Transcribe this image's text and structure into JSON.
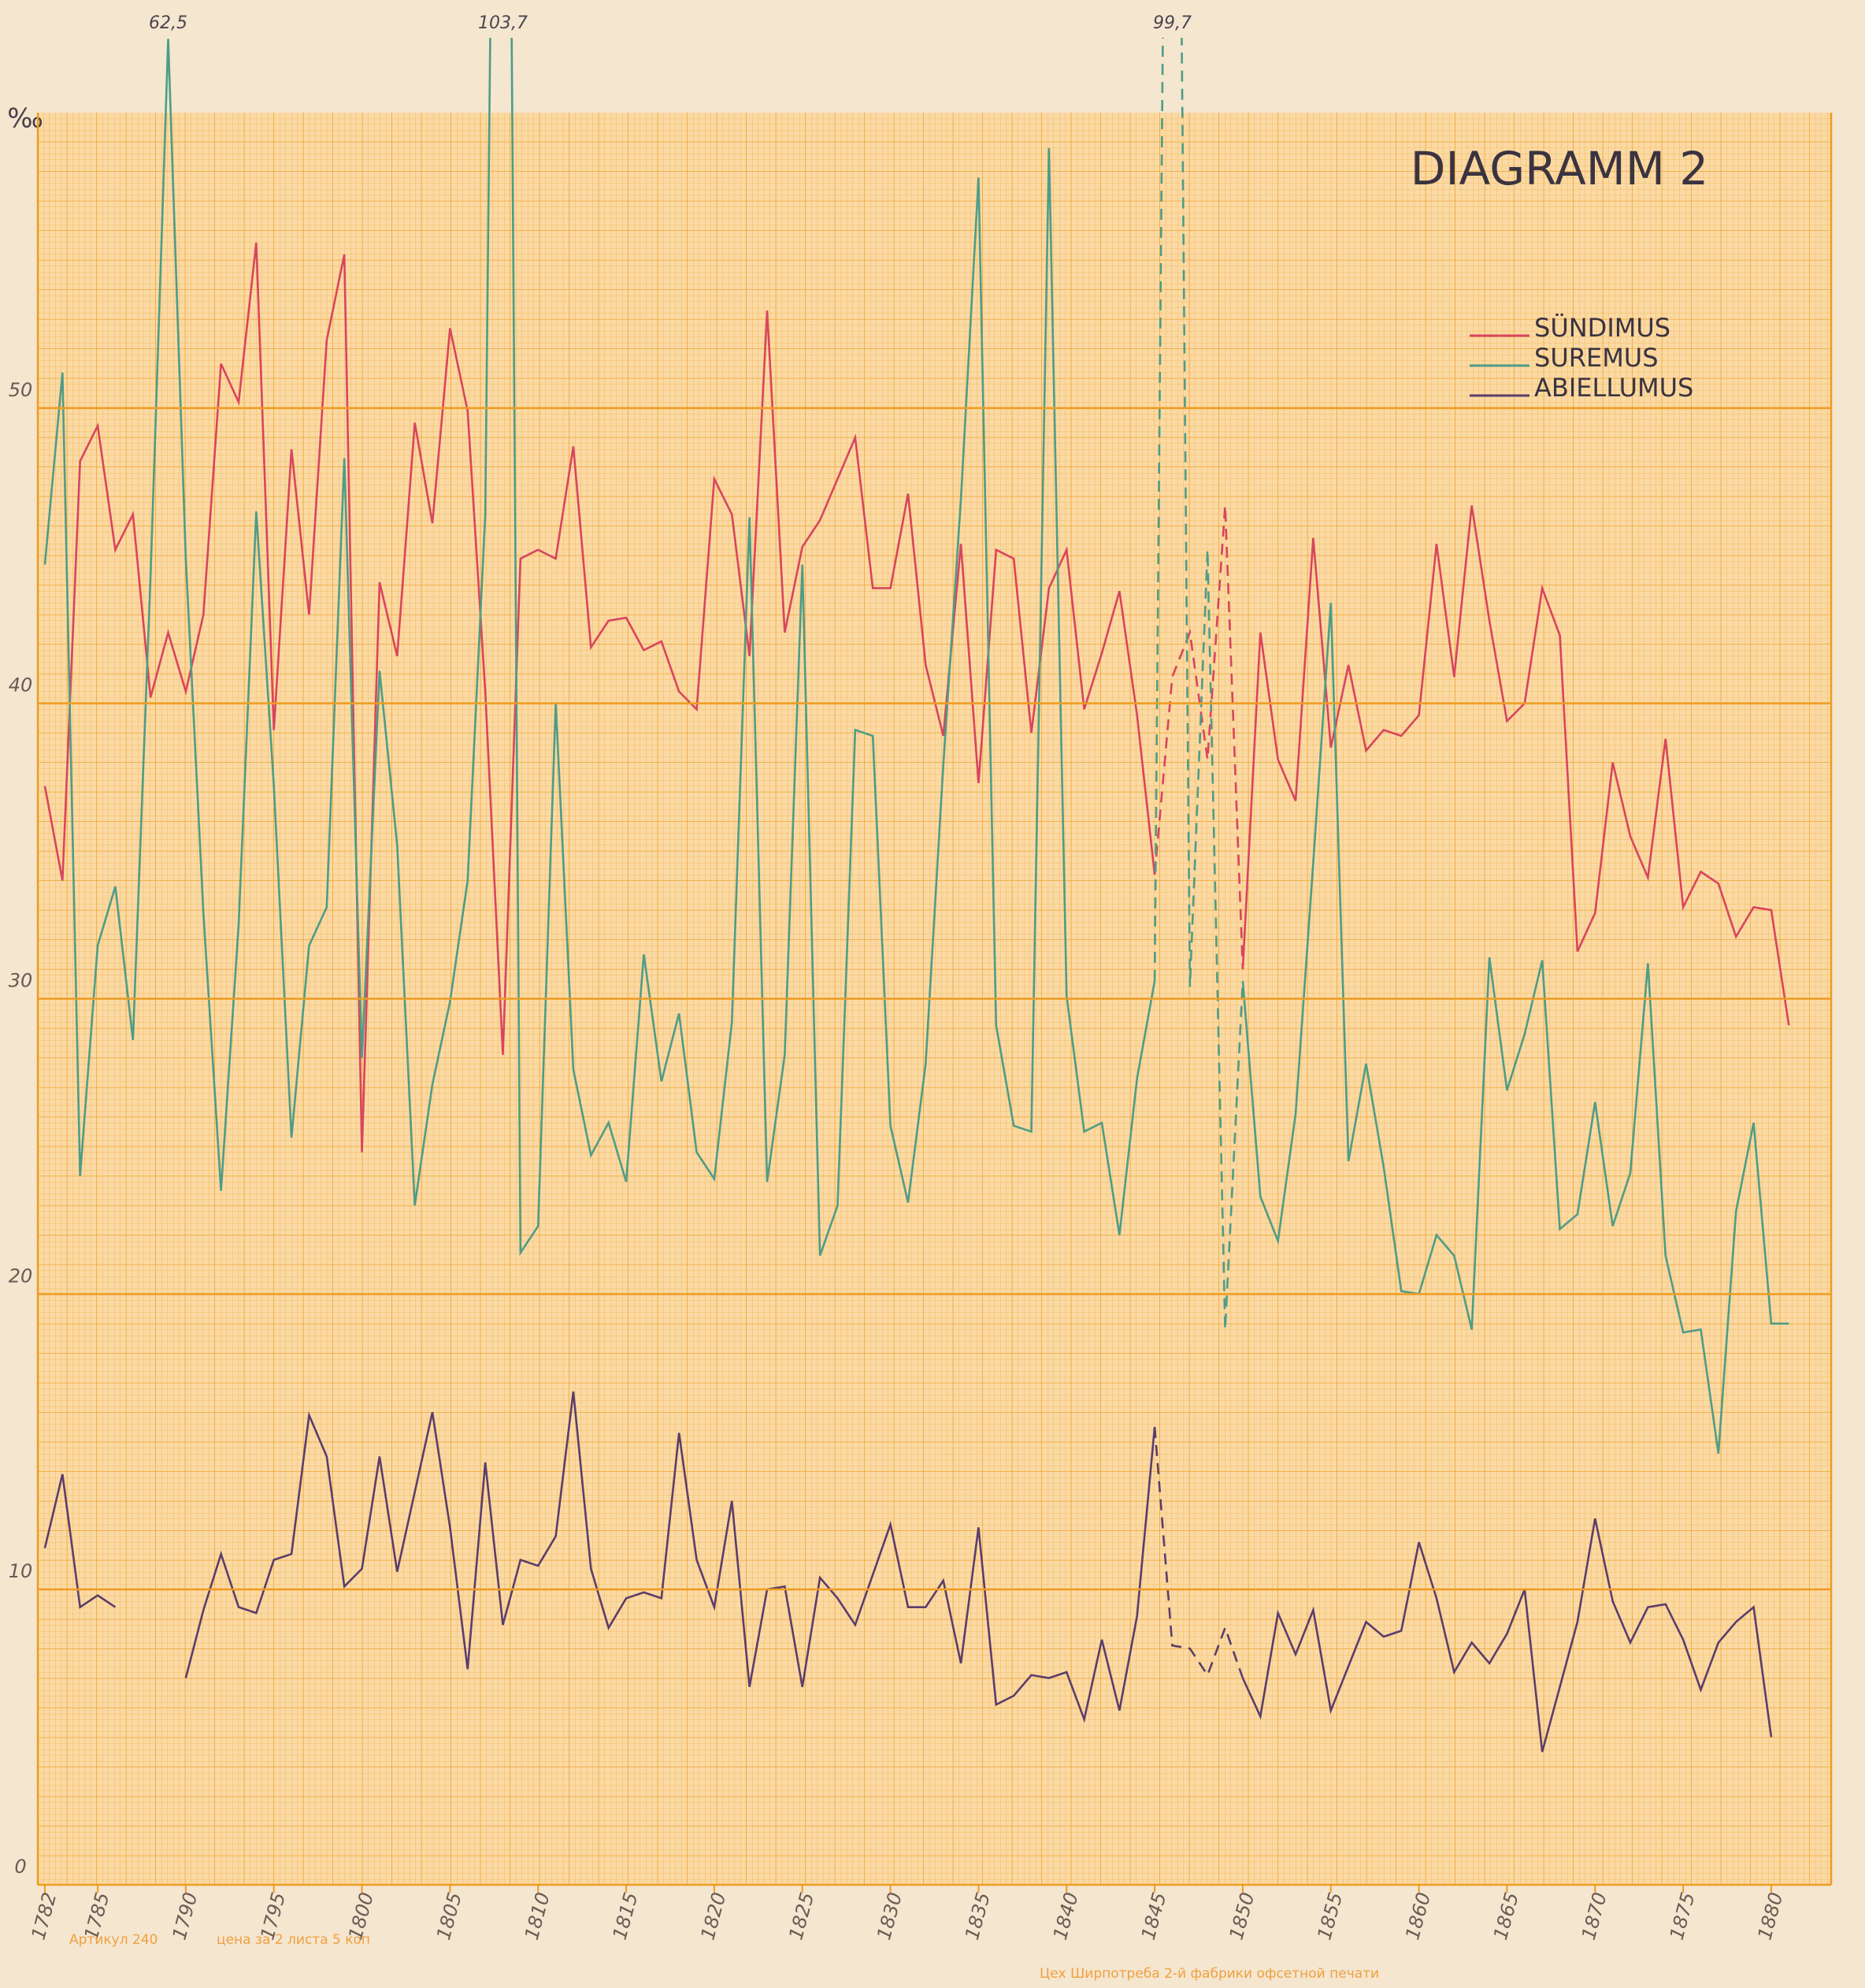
{
  "chart_data": {
    "type": "line",
    "title": "DIAGRAMM 2",
    "y_label": "‰",
    "x": [
      1782,
      1783,
      1784,
      1785,
      1786,
      1787,
      1788,
      1789,
      1790,
      1791,
      1792,
      1793,
      1794,
      1795,
      1796,
      1797,
      1798,
      1799,
      1800,
      1801,
      1802,
      1803,
      1804,
      1805,
      1806,
      1807,
      1808,
      1809,
      1810,
      1811,
      1812,
      1813,
      1814,
      1815,
      1816,
      1817,
      1818,
      1819,
      1820,
      1821,
      1822,
      1823,
      1824,
      1825,
      1826,
      1827,
      1828,
      1829,
      1830,
      1831,
      1832,
      1833,
      1834,
      1835,
      1836,
      1837,
      1838,
      1839,
      1840,
      1841,
      1842,
      1843,
      1844,
      1845,
      1846,
      1847,
      1848,
      1849,
      1850,
      1851,
      1852,
      1853,
      1854,
      1855,
      1856,
      1857,
      1858,
      1859,
      1860,
      1861,
      1862,
      1863,
      1864,
      1865,
      1866,
      1867,
      1868,
      1869,
      1870,
      1871,
      1872,
      1873,
      1874,
      1875,
      1876,
      1877,
      1878,
      1879,
      1880,
      1881
    ],
    "series": [
      {
        "name": "SÜNDIMUS",
        "color": "#d8455e",
        "values": [
          37.2,
          34.0,
          48.2,
          49.4,
          45.2,
          46.4,
          40.2,
          42.4,
          40.4,
          43.0,
          51.5,
          50.2,
          55.6,
          39.1,
          48.6,
          43.0,
          52.3,
          55.2,
          24.8,
          44.1,
          41.6,
          49.5,
          46.1,
          52.7,
          49.9,
          40.4,
          28.1,
          44.9,
          45.2,
          44.9,
          48.7,
          41.9,
          42.8,
          42.9,
          41.8,
          42.1,
          40.4,
          39.8,
          47.6,
          46.4,
          41.6,
          53.3,
          42.4,
          45.3,
          46.2,
          47.6,
          49.0,
          43.9,
          43.9,
          47.1,
          41.3,
          38.9,
          45.4,
          37.3,
          45.2,
          44.9,
          39.0,
          43.9,
          45.2,
          39.8,
          41.7,
          43.8,
          39.6,
          34.2,
          40.9,
          42.4,
          38.1,
          46.7,
          31.0,
          42.4,
          38.1,
          36.7,
          45.6,
          38.5,
          41.3,
          38.4,
          39.1,
          38.9,
          39.6,
          45.4,
          40.9,
          46.7,
          42.8,
          39.4,
          40.0,
          43.9,
          42.3,
          31.6,
          32.9,
          38.0,
          35.5,
          34.1,
          38.8,
          33.1,
          34.3,
          33.9,
          32.1,
          33.1,
          33.0,
          29.1
        ]
      },
      {
        "name": "SUREMUS",
        "color": "#4f9c86",
        "values": [
          44.7,
          51.2,
          24.0,
          31.8,
          33.8,
          28.6,
          44.3,
          62.5,
          44.9,
          32.9,
          23.5,
          32.5,
          46.5,
          37.2,
          25.3,
          31.8,
          33.1,
          48.3,
          28.0,
          41.1,
          35.2,
          23.0,
          27.1,
          29.9,
          34.0,
          46.4,
          103.7,
          21.4,
          22.3,
          40.0,
          27.6,
          24.7,
          25.8,
          23.8,
          31.5,
          27.2,
          29.5,
          24.8,
          23.9,
          29.2,
          46.3,
          23.8,
          28.1,
          44.7,
          21.3,
          23.0,
          39.1,
          38.9,
          25.7,
          23.1,
          27.8,
          37.9,
          46.9,
          57.8,
          29.1,
          25.7,
          25.5,
          58.8,
          30.1,
          25.5,
          25.8,
          22.0,
          27.3,
          30.6,
          99.7,
          30.4,
          45.2,
          18.8,
          30.6,
          23.3,
          21.8,
          26.1,
          34.6,
          43.4,
          24.5,
          27.8,
          24.3,
          20.1,
          20.0,
          22.0,
          21.3,
          18.8,
          31.4,
          26.9,
          28.8,
          31.3,
          22.2,
          22.7,
          26.5,
          22.3,
          24.1,
          31.2,
          21.3,
          18.7,
          18.8,
          14.6,
          22.8,
          25.8,
          19.0,
          19.0
        ],
        "value_labels": [
          null,
          null,
          null,
          null,
          null,
          null,
          null,
          "62,5",
          null,
          null,
          null,
          null,
          null,
          null,
          null,
          null,
          null,
          null,
          null,
          null,
          null,
          null,
          null,
          null,
          null,
          null,
          "103,7",
          null,
          null,
          null,
          null,
          null,
          null,
          null,
          null,
          null,
          null,
          null,
          null,
          null,
          null,
          null,
          null,
          null,
          null,
          null,
          null,
          null,
          null,
          null,
          null,
          null,
          null,
          null,
          null,
          null,
          null,
          null,
          null,
          null,
          null,
          null,
          null,
          null,
          "99,7",
          null,
          null,
          null,
          null,
          null,
          null,
          null,
          null,
          null,
          null,
          null,
          null,
          null,
          null,
          null,
          null,
          null,
          null,
          null,
          null,
          null,
          null,
          null,
          null,
          null,
          null,
          null,
          null,
          null,
          null,
          null,
          null,
          null,
          null,
          null
        ]
      },
      {
        "name": "ABIELLUMUS",
        "color": "#5b3d6b",
        "values": [
          11.4,
          13.9,
          9.4,
          9.8,
          9.4,
          null,
          null,
          null,
          7.0,
          9.3,
          11.2,
          9.4,
          9.2,
          11.0,
          11.2,
          15.9,
          14.5,
          10.1,
          10.7,
          14.5,
          10.6,
          13.3,
          16.0,
          12.1,
          7.3,
          14.3,
          8.8,
          11.0,
          10.8,
          11.8,
          16.7,
          10.7,
          8.7,
          9.7,
          9.9,
          9.7,
          15.3,
          11.0,
          9.4,
          13.0,
          6.7,
          10.0,
          10.1,
          6.7,
          10.4,
          9.7,
          8.8,
          10.5,
          12.2,
          9.4,
          9.4,
          10.3,
          7.5,
          12.1,
          6.1,
          6.4,
          7.1,
          7.0,
          7.2,
          5.6,
          8.3,
          5.9,
          9.1,
          15.5,
          8.1,
          8.0,
          7.1,
          8.7,
          7.0,
          5.7,
          9.2,
          7.8,
          9.3,
          5.9,
          7.4,
          8.9,
          8.4,
          8.6,
          11.6,
          9.7,
          7.2,
          8.2,
          7.5,
          8.5,
          10.0,
          4.5,
          6.7,
          8.9,
          12.4,
          9.6,
          8.2,
          9.4,
          9.5,
          8.3,
          6.6,
          8.2,
          8.9,
          9.4,
          5.0,
          null
        ]
      }
    ],
    "dashed_x": [
      1845,
      1850
    ],
    "xlim": [
      1781.6,
      1883.4
    ],
    "xticks": [
      1782,
      1785,
      1790,
      1795,
      1800,
      1805,
      1810,
      1815,
      1820,
      1825,
      1830,
      1835,
      1840,
      1845,
      1850,
      1855,
      1860,
      1865,
      1870,
      1875,
      1880
    ],
    "ylim": [
      0,
      60
    ],
    "yticks": [
      0,
      10,
      20,
      30,
      40,
      50
    ],
    "grid": true,
    "legend": "top-right",
    "footnotes": [
      "Артикул 240",
      "цена за 2 листа 5 коп",
      "Цех Ширпотреба 2-й фабрики офсетной печати"
    ]
  }
}
